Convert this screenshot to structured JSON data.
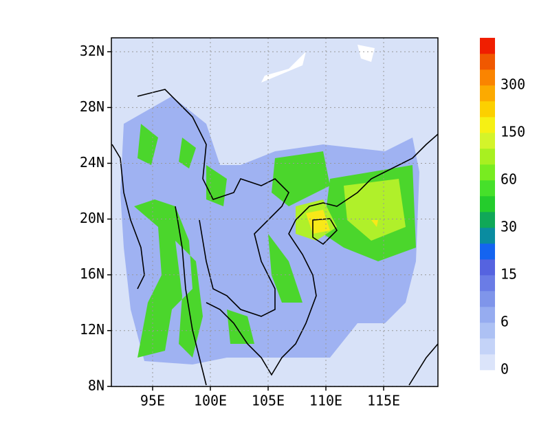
{
  "map": {
    "xlim": [
      91.43,
      119.7
    ],
    "ylim": [
      7.99,
      33.0
    ],
    "xticks": [
      {
        "value": 95,
        "label": "95E"
      },
      {
        "value": 100,
        "label": "100E"
      },
      {
        "value": 105,
        "label": "105E"
      },
      {
        "value": 110,
        "label": "110E"
      },
      {
        "value": 115,
        "label": "115E"
      }
    ],
    "yticks": [
      {
        "value": 8,
        "label": "8N"
      },
      {
        "value": 12,
        "label": "12N"
      },
      {
        "value": 16,
        "label": "16N"
      },
      {
        "value": 20,
        "label": "20N"
      },
      {
        "value": 24,
        "label": "24N"
      },
      {
        "value": 28,
        "label": "28N"
      },
      {
        "value": 32,
        "label": "32N"
      }
    ],
    "grid": true
  },
  "colorbar": {
    "levels": [
      0,
      6,
      15,
      30,
      60,
      150,
      300
    ],
    "colors": [
      "#dbe4fa",
      "#c4d3f8",
      "#adc1f4",
      "#96acf0",
      "#7f95ea",
      "#6a7ce6",
      "#5563e0",
      "#1464f0",
      "#0a8ca0",
      "#10a858",
      "#24cc2c",
      "#46e02a",
      "#78ec20",
      "#a8f020",
      "#d4f42a",
      "#f6f014",
      "#fcd000",
      "#fcaa00",
      "#fa8400",
      "#f05800",
      "#f01e00"
    ]
  }
}
